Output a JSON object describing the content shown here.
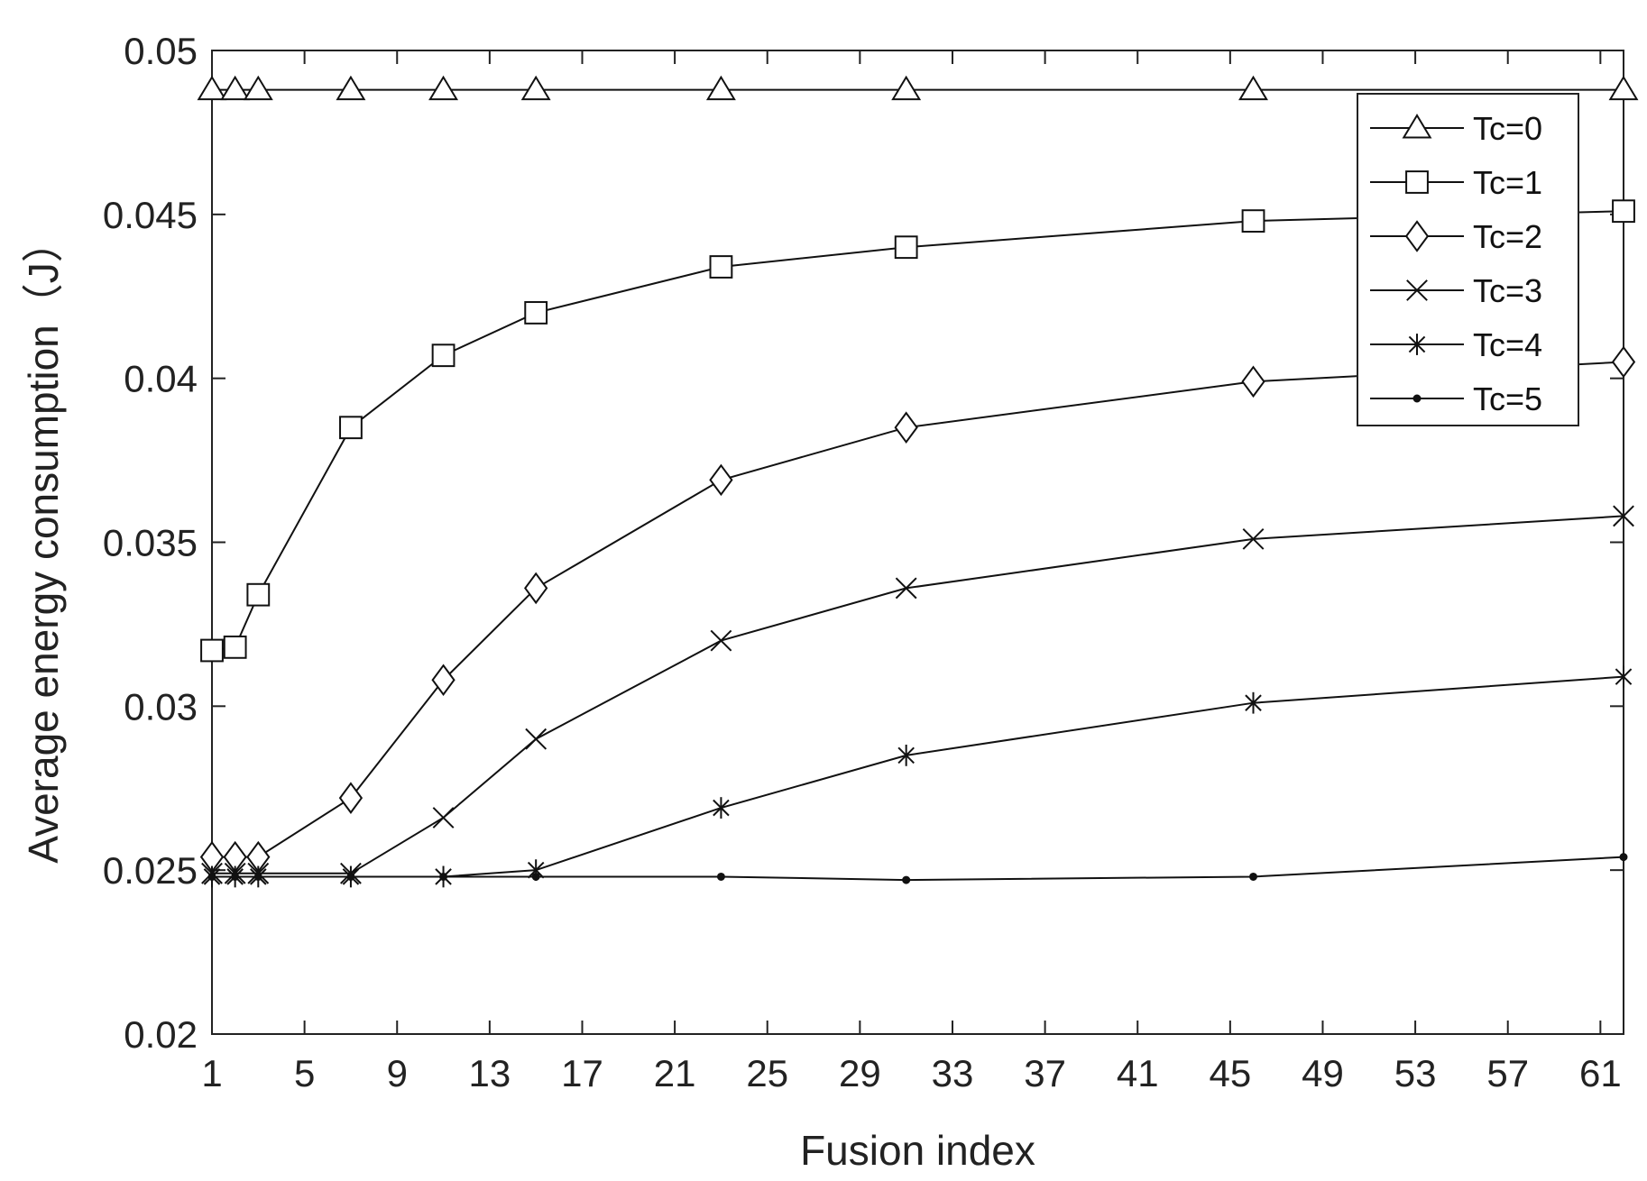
{
  "chart_data": {
    "type": "line",
    "title": "",
    "xlabel": "Fusion index",
    "ylabel": "Average energy consumption（J）",
    "xlim": [
      1,
      62
    ],
    "ylim": [
      0.02,
      0.05
    ],
    "xticks": [
      1,
      5,
      9,
      13,
      17,
      21,
      25,
      29,
      33,
      37,
      41,
      45,
      49,
      53,
      57,
      61
    ],
    "yticks": [
      {
        "value": 0.02,
        "label": "0.02"
      },
      {
        "value": 0.025,
        "label": "0.025"
      },
      {
        "value": 0.03,
        "label": "0.03"
      },
      {
        "value": 0.035,
        "label": "0.035"
      },
      {
        "value": 0.04,
        "label": "0.04"
      },
      {
        "value": 0.045,
        "label": "0.045"
      },
      {
        "value": 0.05,
        "label": "0.05"
      }
    ],
    "grid": false,
    "legend_position": "top-right",
    "x": [
      1,
      2,
      3,
      7,
      11,
      15,
      23,
      31,
      46,
      62
    ],
    "series": [
      {
        "name": "Tc=0",
        "marker": "triangle",
        "values": [
          0.0488,
          0.0488,
          0.0488,
          0.0488,
          0.0488,
          0.0488,
          0.0488,
          0.0488,
          0.0488,
          0.0488
        ]
      },
      {
        "name": "Tc=1",
        "marker": "square",
        "values": [
          0.0317,
          0.0318,
          0.0334,
          0.0385,
          0.0407,
          0.042,
          0.0434,
          0.044,
          0.0448,
          0.0451
        ]
      },
      {
        "name": "Tc=2",
        "marker": "diamond",
        "values": [
          0.0254,
          0.0254,
          0.0254,
          0.0272,
          0.0308,
          0.0336,
          0.0369,
          0.0385,
          0.0399,
          0.0405
        ]
      },
      {
        "name": "Tc=3",
        "marker": "x",
        "values": [
          0.0249,
          0.0249,
          0.0249,
          0.0249,
          0.0266,
          0.029,
          0.032,
          0.0336,
          0.0351,
          0.0358
        ]
      },
      {
        "name": "Tc=4",
        "marker": "asterisk",
        "values": [
          0.0248,
          0.0248,
          0.0248,
          0.0248,
          0.0248,
          0.025,
          0.0269,
          0.0285,
          0.0301,
          0.0309
        ]
      },
      {
        "name": "Tc=5",
        "marker": "dot",
        "values": [
          0.0248,
          0.0248,
          0.0248,
          0.0248,
          0.0248,
          0.0248,
          0.0248,
          0.0247,
          0.0248,
          0.0254
        ]
      }
    ]
  }
}
